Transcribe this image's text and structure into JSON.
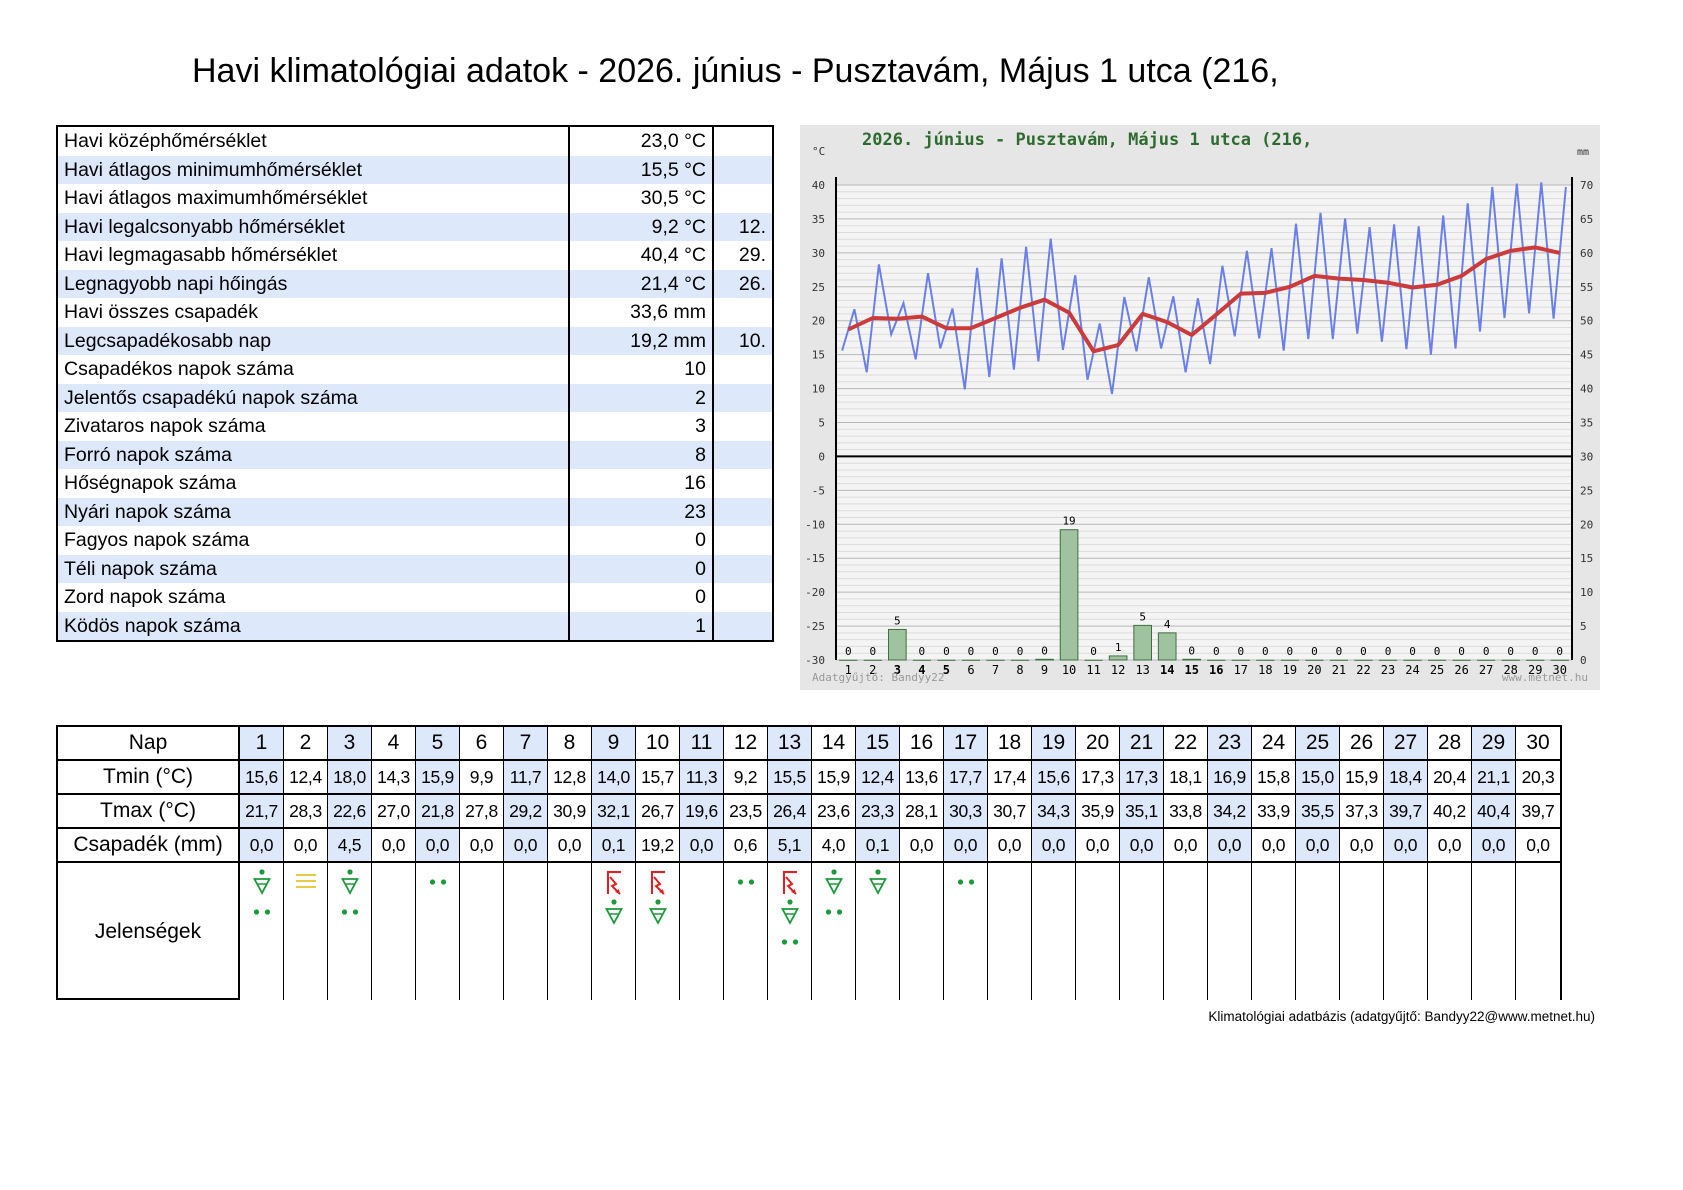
{
  "title": "Havi klimatológiai adatok - 2026. június - Pusztavám, Május 1 utca (216,",
  "summary": [
    {
      "label": "Havi középhőmérséklet",
      "value": "23,0 °C",
      "day": ""
    },
    {
      "label": "Havi átlagos minimumhőmérséklet",
      "value": "15,5 °C",
      "day": ""
    },
    {
      "label": "Havi átlagos maximumhőmérséklet",
      "value": "30,5 °C",
      "day": ""
    },
    {
      "label": "Havi legalcsonyabb hőmérséklet",
      "value": "9,2 °C",
      "day": "12."
    },
    {
      "label": "Havi legmagasabb hőmérséklet",
      "value": "40,4 °C",
      "day": "29."
    },
    {
      "label": "Legnagyobb napi hőingás",
      "value": "21,4 °C",
      "day": "26."
    },
    {
      "label": "Havi összes csapadék",
      "value": "33,6 mm",
      "day": ""
    },
    {
      "label": "Legcsapadékosabb nap",
      "value": "19,2 mm",
      "day": "10."
    },
    {
      "label": "Csapadékos napok száma",
      "value": "10",
      "day": ""
    },
    {
      "label": "Jelentős csapadékú napok száma",
      "value": "2",
      "day": ""
    },
    {
      "label": "Zivataros napok száma",
      "value": "3",
      "day": ""
    },
    {
      "label": "Forró napok száma",
      "value": "8",
      "day": ""
    },
    {
      "label": "Hőségnapok száma",
      "value": "16",
      "day": ""
    },
    {
      "label": "Nyári napok száma",
      "value": "23",
      "day": ""
    },
    {
      "label": "Fagyos napok száma",
      "value": "0",
      "day": ""
    },
    {
      "label": "Téli napok száma",
      "value": "0",
      "day": ""
    },
    {
      "label": "Zord napok száma",
      "value": "0",
      "day": ""
    },
    {
      "label": "Ködös napok száma",
      "value": "1",
      "day": ""
    }
  ],
  "chart_data": {
    "type": "line",
    "title": "2026. június - Pusztavám, Május 1 utca (216,",
    "left_unit": "°C",
    "right_unit": "mm",
    "left_ticks": [
      "40",
      "35",
      "30",
      "25",
      "20",
      "15",
      "10",
      "5",
      "0",
      "-5",
      "-10",
      "-15",
      "-20",
      "-25",
      "-30"
    ],
    "right_ticks": [
      "70",
      "65",
      "60",
      "55",
      "50",
      "45",
      "40",
      "35",
      "30",
      "25",
      "20",
      "15",
      "10",
      "5",
      "0"
    ],
    "temp_range": [
      -30,
      40
    ],
    "precip_range": [
      0,
      70
    ],
    "x": [
      1,
      2,
      3,
      4,
      5,
      6,
      7,
      8,
      9,
      10,
      11,
      12,
      13,
      14,
      15,
      16,
      17,
      18,
      19,
      20,
      21,
      22,
      23,
      24,
      25,
      26,
      27,
      28,
      29,
      30
    ],
    "x_labels": [
      "1",
      "2",
      "3",
      "4",
      "5",
      "6",
      "7",
      "8",
      "9",
      "10",
      "11",
      "12",
      "13",
      "14",
      "15",
      "16",
      "17",
      "18",
      "19",
      "20",
      "21",
      "22",
      "23",
      "24",
      "25",
      "26",
      "27",
      "28",
      "29",
      "30"
    ],
    "temp_series": [
      15.6,
      21.7,
      12.4,
      28.3,
      18.0,
      22.6,
      14.3,
      27.0,
      15.9,
      21.8,
      9.9,
      27.8,
      11.7,
      29.2,
      12.8,
      30.9,
      14.0,
      32.1,
      15.7,
      26.7,
      11.3,
      19.6,
      9.2,
      23.5,
      15.5,
      26.4,
      15.9,
      23.6,
      12.4,
      23.3,
      13.6,
      28.1,
      17.7,
      30.3,
      17.4,
      30.7,
      15.6,
      34.3,
      17.3,
      35.9,
      17.3,
      35.1,
      18.1,
      33.8,
      16.9,
      34.2,
      15.8,
      33.9,
      15.0,
      35.5,
      15.9,
      37.3,
      18.4,
      39.7,
      20.4,
      40.2,
      21.1,
      40.4,
      20.3,
      39.7
    ],
    "mean_series": [
      18.7,
      20.4,
      20.3,
      20.6,
      18.9,
      18.9,
      20.4,
      21.9,
      23.1,
      21.2,
      15.5,
      16.4,
      21.0,
      19.8,
      17.9,
      20.9,
      24.0,
      24.1,
      25.0,
      26.6,
      26.2,
      26.0,
      25.6,
      24.9,
      25.3,
      26.6,
      29.1,
      30.3,
      30.8,
      30.0
    ],
    "precip_values": [
      0.0,
      0.0,
      4.5,
      0.0,
      0.0,
      0.0,
      0.0,
      0.0,
      0.1,
      19.2,
      0.0,
      0.6,
      5.1,
      4.0,
      0.1,
      0.0,
      0.0,
      0.0,
      0.0,
      0.0,
      0.0,
      0.0,
      0.0,
      0.0,
      0.0,
      0.0,
      0.0,
      0.0,
      0.0,
      0.0
    ],
    "precip_labels": [
      "0",
      "0",
      "5",
      "0",
      "0",
      "0",
      "0",
      "0",
      "0",
      "19",
      "0",
      "1",
      "5",
      "4",
      "0",
      "0",
      "0",
      "0",
      "0",
      "0",
      "0",
      "0",
      "0",
      "0",
      "0",
      "0",
      "0",
      "0",
      "0",
      "0"
    ],
    "bold_x_labels": [
      3,
      4,
      5,
      14,
      15,
      16
    ],
    "grid": true,
    "credit_left": "Adatgyűjtő: Bandyy22",
    "credit_right": "www.metnet.hu",
    "colors": {
      "temp": "#6a80e8",
      "mean": "#cc3b3b",
      "bar": "#9fc39f",
      "bar_stroke": "#3f6f3f",
      "title": "#2e6b2e",
      "bg": "#e6e6e6",
      "plot": "#f4f4f4"
    }
  },
  "daily": {
    "headers": {
      "day": "Nap",
      "tmin": "Tmin (°C)",
      "tmax": "Tmax (°C)",
      "precip": "Csapadék (mm)",
      "phen": "Jelenségek"
    },
    "days": [
      "1",
      "2",
      "3",
      "4",
      "5",
      "6",
      "7",
      "8",
      "9",
      "10",
      "11",
      "12",
      "13",
      "14",
      "15",
      "16",
      "17",
      "18",
      "19",
      "20",
      "21",
      "22",
      "23",
      "24",
      "25",
      "26",
      "27",
      "28",
      "29",
      "30"
    ],
    "tmin": [
      "15,6",
      "12,4",
      "18,0",
      "14,3",
      "15,9",
      "9,9",
      "11,7",
      "12,8",
      "14,0",
      "15,7",
      "11,3",
      "9,2",
      "15,5",
      "15,9",
      "12,4",
      "13,6",
      "17,7",
      "17,4",
      "15,6",
      "17,3",
      "17,3",
      "18,1",
      "16,9",
      "15,8",
      "15,0",
      "15,9",
      "18,4",
      "20,4",
      "21,1",
      "20,3"
    ],
    "tmax": [
      "21,7",
      "28,3",
      "22,6",
      "27,0",
      "21,8",
      "27,8",
      "29,2",
      "30,9",
      "32,1",
      "26,7",
      "19,6",
      "23,5",
      "26,4",
      "23,6",
      "23,3",
      "28,1",
      "30,3",
      "30,7",
      "34,3",
      "35,9",
      "35,1",
      "33,8",
      "34,2",
      "33,9",
      "35,5",
      "37,3",
      "39,7",
      "40,2",
      "40,4",
      "39,7"
    ],
    "precip": [
      "0,0",
      "0,0",
      "4,5",
      "0,0",
      "0,0",
      "0,0",
      "0,0",
      "0,0",
      "0,1",
      "19,2",
      "0,0",
      "0,6",
      "5,1",
      "4,0",
      "0,1",
      "0,0",
      "0,0",
      "0,0",
      "0,0",
      "0,0",
      "0,0",
      "0,0",
      "0,0",
      "0,0",
      "0,0",
      "0,0",
      "0,0",
      "0,0",
      "0,0",
      "0,0"
    ],
    "phenomena": [
      [
        "shower-icon",
        "rain-icon"
      ],
      [
        "fog-icon"
      ],
      [
        "shower-icon",
        "rain-icon"
      ],
      [],
      [
        "rain-icon"
      ],
      [],
      [],
      [],
      [
        "thunderstorm-icon",
        "shower-icon"
      ],
      [
        "thunderstorm-icon",
        "shower-icon"
      ],
      [],
      [
        "rain-icon"
      ],
      [
        "thunderstorm-icon",
        "shower-icon",
        "rain-icon"
      ],
      [
        "shower-icon",
        "rain-icon"
      ],
      [
        "shower-icon"
      ],
      [],
      [
        "rain-icon"
      ],
      [],
      [],
      [],
      [],
      [],
      [],
      [],
      [],
      [],
      [],
      [],
      [],
      []
    ],
    "alt_columns": [
      1,
      3,
      5,
      7,
      9,
      11,
      13,
      15,
      17,
      19,
      21,
      23,
      25,
      27,
      29
    ]
  },
  "footer": "Klimatológiai adatbázis (adatgyűjtő: Bandyy22@www.metnet.hu)"
}
